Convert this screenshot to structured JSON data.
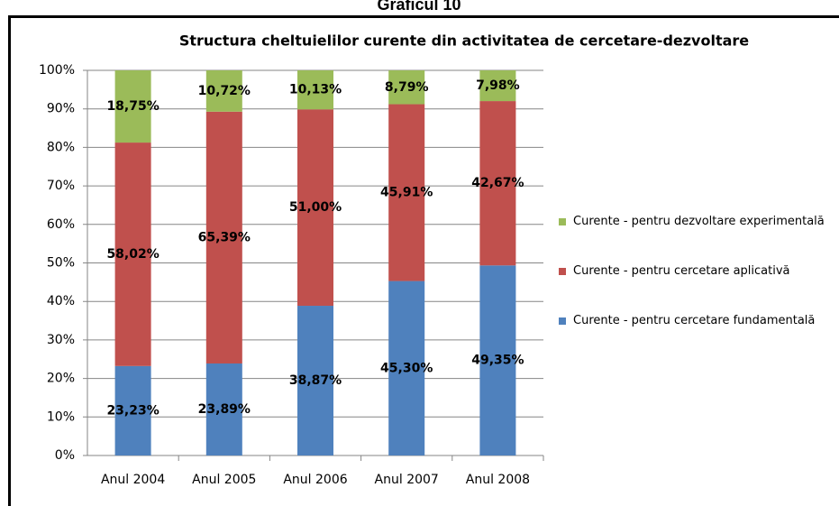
{
  "heading": "Graficul 10",
  "chart_data": {
    "type": "stacked_bar",
    "title": "Structura cheltuielilor curente din activitatea de cercetare-dezvoltare",
    "categories": [
      "Anul 2004",
      "Anul 2005",
      "Anul 2006",
      "Anul 2007",
      "Anul 2008"
    ],
    "series": [
      {
        "name": "Curente - pentru cercetare fundamentală",
        "color": "#4f81bd",
        "values": [
          23.23,
          23.89,
          38.87,
          45.3,
          49.35
        ],
        "value_labels": [
          "23,23%",
          "23,89%",
          "38,87%",
          "45,30%",
          "49,35%"
        ]
      },
      {
        "name": "Curente - pentru cercetare aplicativă",
        "color": "#c0504d",
        "values": [
          58.02,
          65.39,
          51.0,
          45.91,
          42.67
        ],
        "value_labels": [
          "58,02%",
          "65,39%",
          "51,00%",
          "45,91%",
          "42,67%"
        ]
      },
      {
        "name": "Curente - pentru dezvoltare experimentală",
        "color": "#9bbb59",
        "values": [
          18.75,
          10.72,
          10.13,
          8.79,
          7.98
        ],
        "value_labels": [
          "18,75%",
          "10,72%",
          "10,13%",
          "8,79%",
          "7,98%"
        ]
      }
    ],
    "ylim": [
      0,
      100
    ],
    "yticks": [
      {
        "value": 0,
        "label": "0%"
      },
      {
        "value": 10,
        "label": "10%"
      },
      {
        "value": 20,
        "label": "20%"
      },
      {
        "value": 30,
        "label": "30%"
      },
      {
        "value": 40,
        "label": "40%"
      },
      {
        "value": 50,
        "label": "50%"
      },
      {
        "value": 60,
        "label": "60%"
      },
      {
        "value": 70,
        "label": "70%"
      },
      {
        "value": 80,
        "label": "80%"
      },
      {
        "value": 90,
        "label": "90%"
      },
      {
        "value": 100,
        "label": "100%"
      }
    ],
    "grid": true,
    "legend": "right"
  }
}
